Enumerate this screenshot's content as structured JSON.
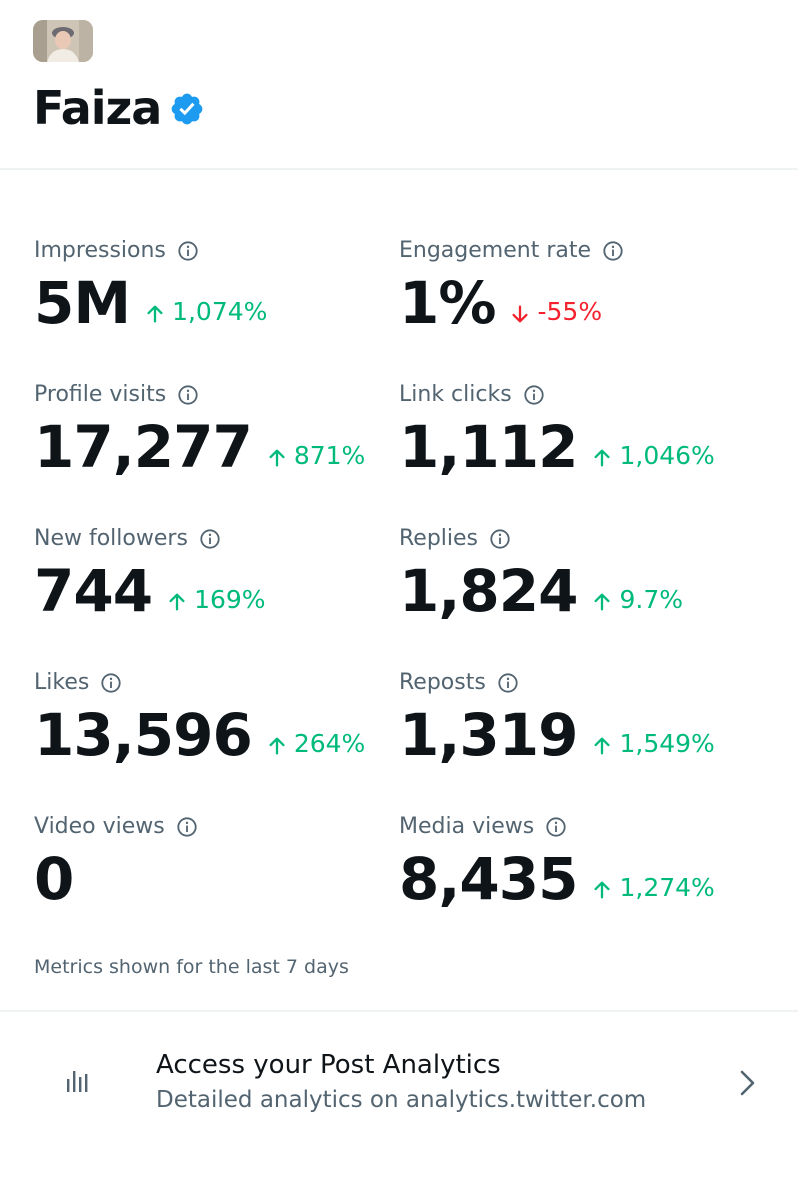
{
  "profile": {
    "name": "Faiza",
    "verified_color": "#1d9bf0"
  },
  "metrics": [
    {
      "label": "Impressions",
      "value": "5M",
      "change": "1,074%",
      "direction": "up"
    },
    {
      "label": "Engagement rate",
      "value": "1%",
      "change": "-55%",
      "direction": "down"
    },
    {
      "label": "Profile visits",
      "value": "17,277",
      "change": "871%",
      "direction": "up"
    },
    {
      "label": "Link clicks",
      "value": "1,112",
      "change": "1,046%",
      "direction": "up"
    },
    {
      "label": "New followers",
      "value": "744",
      "change": "169%",
      "direction": "up"
    },
    {
      "label": "Replies",
      "value": "1,824",
      "change": "9.7%",
      "direction": "up"
    },
    {
      "label": "Likes",
      "value": "13,596",
      "change": "264%",
      "direction": "up"
    },
    {
      "label": "Reposts",
      "value": "1,319",
      "change": "1,549%",
      "direction": "up"
    },
    {
      "label": "Video views",
      "value": "0",
      "change": "",
      "direction": ""
    },
    {
      "label": "Media views",
      "value": "8,435",
      "change": "1,274%",
      "direction": "up"
    }
  ],
  "footnote": "Metrics shown for the last 7 days",
  "promo": {
    "title": "Access your Post Analytics",
    "subtitle": "Detailed analytics on analytics.twitter.com",
    "icon": "bar-chart-icon"
  },
  "colors": {
    "positive": "#00ba7c",
    "negative": "#f4212e",
    "secondary_text": "#536471",
    "primary_text": "#0f1419"
  }
}
